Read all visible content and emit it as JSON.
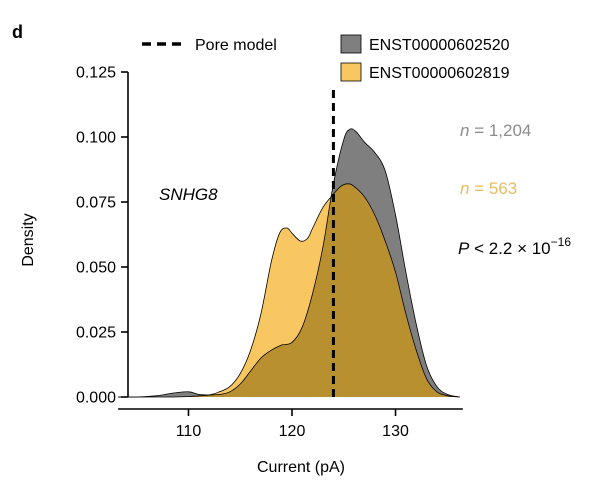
{
  "panel_label": "d",
  "annotations": {
    "gene": "SNHG8",
    "n1_prefix": "n",
    "n1_value": " = 1,204",
    "n2_prefix": "n",
    "n2_value": " = 563",
    "p_prefix": "P",
    "p_text": " < 2.2 × 10",
    "p_exp": "−16"
  },
  "legend": {
    "pore_model": "Pore model",
    "series1": "ENST00000602520",
    "series2": "ENST00000602819"
  },
  "colors": {
    "series1_fill": "#7f7f7f",
    "series2_fill": "#f9c761",
    "overlap_fill": "#b8902f",
    "n1_color": "#8c8c8c",
    "n2_color": "#e8bc62",
    "p_color": "#000000"
  },
  "chart_data": {
    "type": "area",
    "title": "",
    "xlabel": "Current (pA)",
    "ylabel": "Density",
    "xlim": [
      103,
      137
    ],
    "ylim": [
      0,
      0.125
    ],
    "xticks": [
      "110",
      "120",
      "130"
    ],
    "xtick_values": [
      110,
      120,
      130
    ],
    "yticks": [
      "0.000",
      "0.025",
      "0.050",
      "0.075",
      "0.100",
      "0.125"
    ],
    "ytick_values": [
      0,
      0.025,
      0.05,
      0.075,
      0.1,
      0.125
    ],
    "pore_model_x": 124,
    "series": [
      {
        "name": "ENST00000602520",
        "x": [
          103.2,
          105,
          107,
          108.5,
          110,
          111,
          112,
          113,
          114,
          115,
          116,
          117,
          118,
          119,
          120,
          121,
          122,
          123,
          124,
          125,
          125.6,
          126.2,
          127,
          128,
          129,
          130,
          131,
          132,
          133,
          134,
          135,
          136.2
        ],
        "values": [
          0.0,
          0.0,
          0.0005,
          0.0015,
          0.002,
          0.001,
          0.0008,
          0.001,
          0.002,
          0.005,
          0.01,
          0.015,
          0.018,
          0.02,
          0.021,
          0.027,
          0.04,
          0.058,
          0.082,
          0.099,
          0.103,
          0.102,
          0.098,
          0.094,
          0.087,
          0.07,
          0.048,
          0.028,
          0.012,
          0.004,
          0.001,
          0.0
        ]
      },
      {
        "name": "ENST00000602819",
        "x": [
          103.2,
          108,
          110,
          112,
          113,
          114,
          115,
          116,
          117,
          118,
          118.8,
          119.5,
          120,
          120.8,
          121.5,
          122,
          123,
          124,
          124.7,
          125.4,
          126,
          127,
          128,
          129,
          130,
          131,
          132,
          133,
          134,
          135,
          136.2
        ],
        "values": [
          0.0,
          0.0,
          0.0002,
          0.0008,
          0.002,
          0.004,
          0.009,
          0.018,
          0.032,
          0.052,
          0.063,
          0.065,
          0.063,
          0.06,
          0.061,
          0.065,
          0.073,
          0.078,
          0.081,
          0.082,
          0.081,
          0.077,
          0.07,
          0.06,
          0.048,
          0.032,
          0.018,
          0.007,
          0.002,
          0.0005,
          0.0
        ]
      }
    ]
  }
}
